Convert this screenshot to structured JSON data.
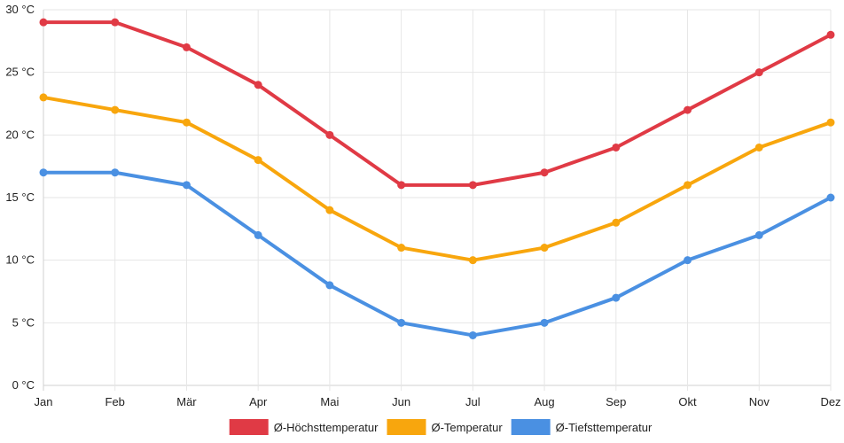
{
  "chart_data": {
    "type": "line",
    "title": "",
    "xlabel": "",
    "ylabel": "",
    "categories": [
      "Jan",
      "Feb",
      "Mär",
      "Apr",
      "Mai",
      "Jun",
      "Jul",
      "Aug",
      "Sep",
      "Okt",
      "Nov",
      "Dez"
    ],
    "ylim": [
      0,
      30
    ],
    "yticks": [
      0,
      5,
      10,
      15,
      20,
      25,
      30
    ],
    "ytick_labels": [
      "0 °C",
      "5 °C",
      "10 °C",
      "15 °C",
      "20 °C",
      "25 °C",
      "30 °C"
    ],
    "grid": true,
    "legend_position": "bottom",
    "series": [
      {
        "name": "Ø-Höchsttemperatur",
        "color": "#e03a45",
        "values": [
          29,
          29,
          27,
          24,
          20,
          16,
          16,
          17,
          19,
          22,
          25,
          28
        ]
      },
      {
        "name": "Ø-Temperatur",
        "color": "#f8a60d",
        "values": [
          23,
          22,
          21,
          18,
          14,
          11,
          10,
          11,
          13,
          16,
          19,
          21
        ]
      },
      {
        "name": "Ø-Tiefsttemperatur",
        "color": "#4a90e2",
        "values": [
          17,
          17,
          16,
          12,
          8,
          5,
          4,
          5,
          7,
          10,
          12,
          15
        ]
      }
    ]
  }
}
